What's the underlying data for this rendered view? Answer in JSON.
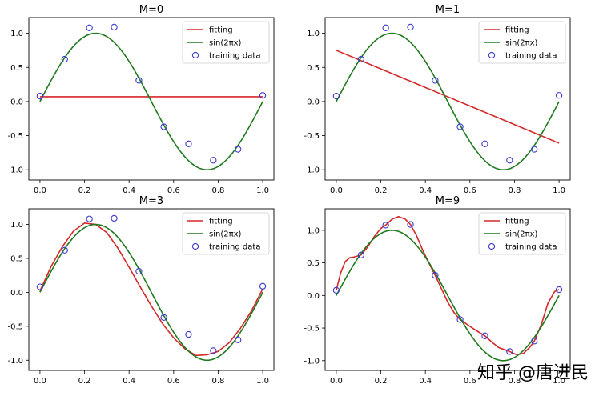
{
  "watermark": "知乎 @唐进民",
  "colors": {
    "fitting": "#d62728",
    "sine": "#1f7a1f",
    "training": "#3b3bcc",
    "watermark": "#c8c8c8"
  },
  "chart_data": [
    {
      "type": "line",
      "title": "M=0",
      "xlim": [
        -0.05,
        1.05
      ],
      "ylim": [
        -1.15,
        1.23
      ],
      "xticks": [
        "0.0",
        "0.2",
        "0.4",
        "0.6",
        "0.8",
        "1.0"
      ],
      "yticks": [
        "-1.0",
        "-0.5",
        "0.0",
        "0.5",
        "1.0"
      ],
      "legend": {
        "position": "upper right",
        "entries": [
          "fitting",
          "sin(2πx)",
          "training data"
        ]
      },
      "training_data": {
        "x": [
          0.0,
          0.111,
          0.222,
          0.333,
          0.444,
          0.556,
          0.667,
          0.778,
          0.889,
          1.0
        ],
        "y": [
          0.08,
          0.62,
          1.08,
          1.09,
          0.31,
          -0.37,
          -0.62,
          -0.86,
          -0.7,
          0.09
        ]
      },
      "true_function": "sin(2πx)",
      "fitting": {
        "x": [
          0.0,
          0.1,
          0.2,
          0.3,
          0.4,
          0.5,
          0.6,
          0.7,
          0.8,
          0.9,
          1.0
        ],
        "y": [
          0.07,
          0.07,
          0.07,
          0.07,
          0.07,
          0.07,
          0.07,
          0.07,
          0.07,
          0.07,
          0.07
        ]
      }
    },
    {
      "type": "line",
      "title": "M=1",
      "xlim": [
        -0.05,
        1.05
      ],
      "ylim": [
        -1.15,
        1.23
      ],
      "xticks": [
        "0.0",
        "0.2",
        "0.4",
        "0.6",
        "0.8",
        "1.0"
      ],
      "yticks": [
        "-1.0",
        "-0.5",
        "0.0",
        "0.5",
        "1.0"
      ],
      "legend": {
        "position": "upper right",
        "entries": [
          "fitting",
          "sin(2πx)",
          "training data"
        ]
      },
      "training_data": {
        "x": [
          0.0,
          0.111,
          0.222,
          0.333,
          0.444,
          0.556,
          0.667,
          0.778,
          0.889,
          1.0
        ],
        "y": [
          0.08,
          0.62,
          1.08,
          1.09,
          0.31,
          -0.37,
          -0.62,
          -0.86,
          -0.7,
          0.09
        ]
      },
      "true_function": "sin(2πx)",
      "fitting": {
        "x": [
          0.0,
          0.1,
          0.2,
          0.3,
          0.4,
          0.5,
          0.6,
          0.7,
          0.8,
          0.9,
          1.0
        ],
        "y": [
          0.75,
          0.614,
          0.478,
          0.342,
          0.206,
          0.07,
          -0.066,
          -0.202,
          -0.338,
          -0.474,
          -0.61
        ]
      }
    },
    {
      "type": "line",
      "title": "M=3",
      "xlim": [
        -0.05,
        1.05
      ],
      "ylim": [
        -1.15,
        1.23
      ],
      "xticks": [
        "0.0",
        "0.2",
        "0.4",
        "0.6",
        "0.8",
        "1.0"
      ],
      "yticks": [
        "-1.0",
        "-0.5",
        "0.0",
        "0.5",
        "1.0"
      ],
      "legend": {
        "position": "upper right",
        "entries": [
          "fitting",
          "sin(2πx)",
          "training data"
        ]
      },
      "training_data": {
        "x": [
          0.0,
          0.111,
          0.222,
          0.333,
          0.444,
          0.556,
          0.667,
          0.778,
          0.889,
          1.0
        ],
        "y": [
          0.08,
          0.62,
          1.08,
          1.09,
          0.31,
          -0.37,
          -0.62,
          -0.86,
          -0.7,
          0.09
        ]
      },
      "true_function": "sin(2πx)",
      "fitting": {
        "x": [
          0.0,
          0.05,
          0.1,
          0.15,
          0.2,
          0.25,
          0.3,
          0.35,
          0.4,
          0.45,
          0.5,
          0.55,
          0.6,
          0.65,
          0.7,
          0.75,
          0.8,
          0.85,
          0.9,
          0.95,
          1.0
        ],
        "y": [
          0.02,
          0.38,
          0.67,
          0.9,
          1.02,
          1.0,
          0.88,
          0.65,
          0.37,
          0.08,
          -0.2,
          -0.46,
          -0.67,
          -0.83,
          -0.93,
          -0.92,
          -0.87,
          -0.74,
          -0.53,
          -0.27,
          0.05
        ]
      }
    },
    {
      "type": "line",
      "title": "M=9",
      "xlim": [
        -0.05,
        1.05
      ],
      "ylim": [
        -1.15,
        1.33
      ],
      "xticks": [
        "0.0",
        "0.2",
        "0.4",
        "0.6",
        "0.8",
        "1.0"
      ],
      "yticks": [
        "-1.0",
        "-0.5",
        "0.0",
        "0.5",
        "1.0"
      ],
      "legend": {
        "position": "upper right",
        "entries": [
          "fitting",
          "sin(2πx)",
          "training data"
        ]
      },
      "training_data": {
        "x": [
          0.0,
          0.111,
          0.222,
          0.333,
          0.444,
          0.556,
          0.667,
          0.778,
          0.889,
          1.0
        ],
        "y": [
          0.08,
          0.62,
          1.08,
          1.09,
          0.31,
          -0.37,
          -0.62,
          -0.86,
          -0.7,
          0.09
        ]
      },
      "true_function": "sin(2πx)",
      "fitting": {
        "x": [
          0.0,
          0.02,
          0.04,
          0.06,
          0.08,
          0.111,
          0.14,
          0.17,
          0.2,
          0.222,
          0.25,
          0.28,
          0.31,
          0.333,
          0.36,
          0.39,
          0.42,
          0.444,
          0.47,
          0.5,
          0.53,
          0.556,
          0.59,
          0.62,
          0.667,
          0.7,
          0.73,
          0.778,
          0.81,
          0.84,
          0.87,
          0.889,
          0.92,
          0.95,
          0.98,
          1.0
        ],
        "y": [
          0.08,
          0.35,
          0.52,
          0.58,
          0.59,
          0.62,
          0.74,
          0.9,
          1.03,
          1.08,
          1.17,
          1.21,
          1.17,
          1.09,
          0.92,
          0.68,
          0.47,
          0.31,
          0.12,
          -0.1,
          -0.27,
          -0.37,
          -0.45,
          -0.52,
          -0.62,
          -0.72,
          -0.8,
          -0.86,
          -0.91,
          -0.89,
          -0.79,
          -0.7,
          -0.45,
          -0.12,
          0.06,
          0.09
        ]
      }
    }
  ]
}
